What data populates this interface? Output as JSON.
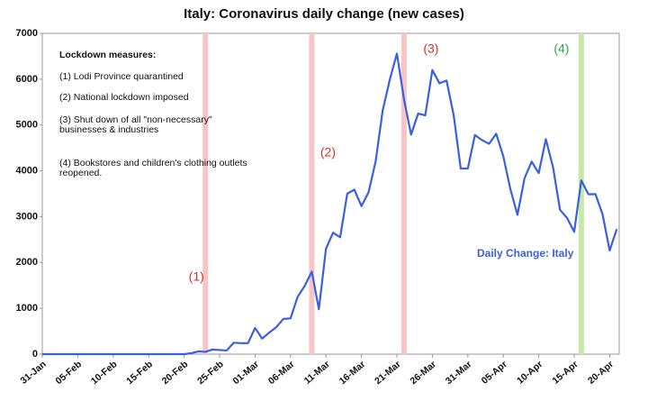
{
  "chart_data": {
    "type": "line",
    "title": "Italy: Coronavirus daily change (new cases)",
    "categories": [
      "31-Jan",
      null,
      null,
      null,
      null,
      "05-Feb",
      null,
      null,
      null,
      null,
      "10-Feb",
      null,
      null,
      null,
      null,
      "15-Feb",
      null,
      null,
      null,
      null,
      "20-Feb",
      null,
      null,
      null,
      null,
      "25-Feb",
      null,
      null,
      null,
      null,
      "01-Mar",
      null,
      null,
      null,
      null,
      "06-Mar",
      null,
      null,
      null,
      null,
      "11-Mar",
      null,
      null,
      null,
      null,
      "16-Mar",
      null,
      null,
      null,
      null,
      "21-Mar",
      null,
      null,
      null,
      null,
      "26-Mar",
      null,
      null,
      null,
      null,
      "31-Mar",
      null,
      null,
      null,
      null,
      "05-Apr",
      null,
      null,
      null,
      null,
      "10-Apr",
      null,
      null,
      null,
      null,
      "15-Apr",
      null,
      null,
      null,
      null,
      "20-Apr",
      null
    ],
    "series": [
      {
        "name": "Daily Change: Italy",
        "color": "#3a5fe0",
        "values": [
          0,
          0,
          0,
          0,
          0,
          0,
          0,
          0,
          0,
          0,
          0,
          0,
          0,
          0,
          0,
          0,
          0,
          0,
          0,
          0,
          0,
          20,
          60,
          50,
          100,
          90,
          80,
          250,
          240,
          240,
          570,
          340,
          470,
          590,
          770,
          780,
          1250,
          1490,
          1800,
          980,
          2300,
          2650,
          2550,
          3500,
          3590,
          3230,
          3530,
          4200,
          5320,
          5990,
          6560,
          5560,
          4790,
          5250,
          5210,
          6200,
          5910,
          5970,
          5220,
          4050,
          4050,
          4780,
          4670,
          4590,
          4810,
          4320,
          3600,
          3040,
          3840,
          4200,
          3950,
          4690,
          4090,
          3150,
          2970,
          2670,
          3790,
          3490,
          3490,
          3050,
          2260,
          2730
        ]
      }
    ],
    "ylim": [
      0,
      7000
    ],
    "yticks": [
      0,
      1000,
      2000,
      3000,
      4000,
      5000,
      6000,
      7000
    ],
    "grid": false,
    "vlines": [
      {
        "index": 23,
        "label": "(1)",
        "color": "#f8c4c4",
        "label_color": "#d03030"
      },
      {
        "index": 38,
        "label": "(2)",
        "color": "#f8c4c4",
        "label_color": "#d03030"
      },
      {
        "index": 51,
        "label": "(3)",
        "color": "#f8c4c4",
        "label_color": "#d03030"
      },
      {
        "index": 76,
        "label": "(4)",
        "color": "#c8e8a8",
        "label_color": "#30a050"
      }
    ],
    "notes": {
      "title": "Lockdown measures:",
      "items": [
        "(1) Lodi Province quarantined",
        "(2) National lockdown imposed",
        "(3) Shut down of all \"non-necessary\" businesses & industries",
        "(4) Bookstores and children's clothing outlets reopened."
      ]
    }
  }
}
